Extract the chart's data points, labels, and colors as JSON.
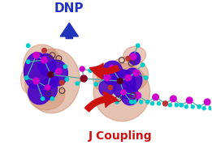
{
  "bg_color": "#ffffff",
  "j_coupling_text": "J Coupling",
  "j_coupling_color": "#cc1111",
  "j_coupling_fontsize": 10,
  "dnp_text": "DNP",
  "dnp_color": "#2233bb",
  "dnp_fontsize": 11,
  "orbital_brown": "#cc8866",
  "orbital_purple": "#4400cc",
  "atom_cyan": "#00cccc",
  "atom_magenta": "#cc00cc",
  "atom_red": "#bb3333",
  "atom_dark": "#550022",
  "bond_color": "#55aaaa"
}
